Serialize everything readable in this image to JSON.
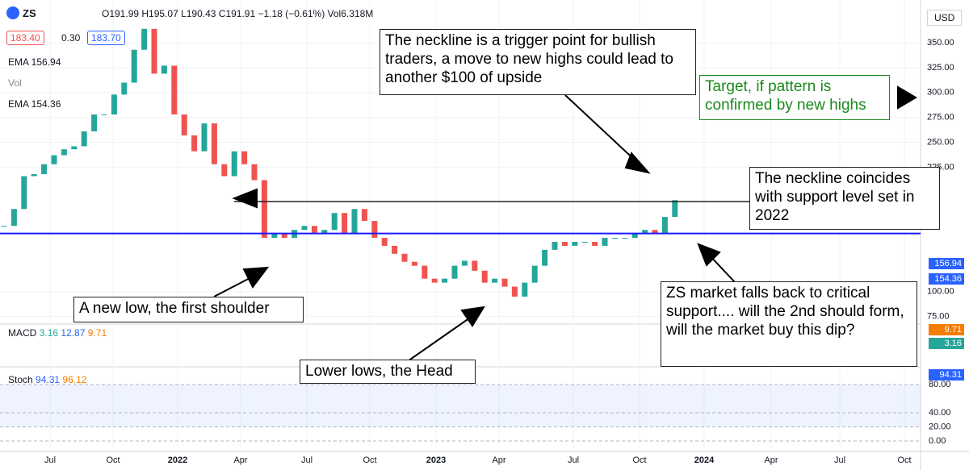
{
  "chart_data": {
    "type": "candlestick",
    "values": [
      166,
      183,
      216,
      218,
      228,
      237,
      243,
      246,
      261,
      278,
      278,
      298,
      310,
      343,
      364,
      319,
      327,
      278,
      257,
      241,
      269,
      228,
      216,
      241,
      228,
      212,
      154,
      158,
      154,
      162,
      166,
      158,
      162,
      179,
      158,
      183,
      171,
      154,
      146,
      138,
      130,
      126,
      113,
      109,
      113,
      126,
      131,
      121,
      109,
      113,
      105,
      95,
      109,
      126,
      142,
      150,
      146,
      150,
      150,
      146,
      154,
      154,
      154,
      158,
      162,
      158,
      175,
      191.91
    ],
    "up_color": "#26a69a",
    "down_color": "#ef5350",
    "ylim": [
      69,
      393
    ],
    "yticks": [
      {
        "value": 350,
        "label": "350.00"
      },
      {
        "value": 325,
        "label": "325.00"
      },
      {
        "value": 300,
        "label": "300.00"
      },
      {
        "value": 275,
        "label": "275.00"
      },
      {
        "value": 250,
        "label": "250.00"
      },
      {
        "value": 225,
        "label": "225.00"
      },
      {
        "value": 100,
        "label": "100.00"
      },
      {
        "value": 75,
        "label": "75.00"
      }
    ],
    "xtick_labels": [
      "Jul",
      "Oct",
      "2022",
      "Apr",
      "Jul",
      "Oct",
      "2023",
      "Apr",
      "Jul",
      "Oct",
      "2024",
      "Apr",
      "Jul",
      "Oct"
    ],
    "neckline": 190.5,
    "neckline_color": "#222222",
    "support": 158.4,
    "support_color": "#1a1aff",
    "grid": true,
    "currency": "USD",
    "price_tags": [
      {
        "label": "156.94",
        "color": "#2962ff"
      },
      {
        "label": "154.36",
        "color": "#2962ff"
      }
    ],
    "macd": {
      "label": "MACD",
      "values_text": [
        "3.16",
        "12.87",
        "9.71"
      ],
      "tags": [
        {
          "label": "9.71",
          "color": "#f57c00"
        },
        {
          "label": "3.16",
          "color": "#26a69a"
        }
      ]
    },
    "stoch": {
      "label": "Stoch",
      "values_text": [
        "94.31",
        "96.12"
      ],
      "tag": {
        "label": "94.31",
        "color": "#2962ff"
      },
      "ylim": [
        0,
        100
      ],
      "band": [
        20,
        80
      ],
      "yticks": [
        {
          "value": 80,
          "label": "80.00"
        },
        {
          "value": 40,
          "label": "40.00"
        },
        {
          "value": 20,
          "label": "20.00"
        },
        {
          "value": 0,
          "label": "0.00"
        }
      ]
    }
  },
  "header": {
    "symbol": "ZS",
    "ohlc": "O191.99 H195.07 L190.43 C191.91 −1.18 (−0.61%) Vol6.318M",
    "bid": "183.40",
    "spread": "0.30",
    "ask": "183.70",
    "ema1": "EMA 156.94",
    "vol": "Vol",
    "ema2": "EMA 154.36"
  },
  "annotations": {
    "neckline_trigger": "The neckline is a trigger point for bullish traders, a move to new highs could lead to another $100 of upside",
    "target": "Target, if pattern is confirmed by new highs",
    "neckline_support": "The neckline coincides with support level set in 2022",
    "first_shoulder": "A new low, the first shoulder",
    "head": "Lower lows, the Head",
    "second_shoulder": "ZS market falls back to critical support.... will the 2nd should form, will the market buy this dip?"
  }
}
